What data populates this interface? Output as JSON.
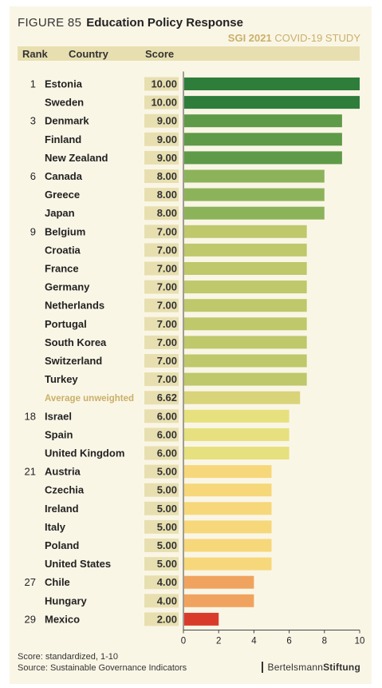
{
  "header": {
    "figure_label": "FIGURE 85",
    "title": "Education Policy Response",
    "subtitle_bold": "SGI 2021",
    "subtitle_rest": "COVID-19 STUDY"
  },
  "columns": {
    "rank": "Rank",
    "country": "Country",
    "score": "Score"
  },
  "chart_data": {
    "type": "bar",
    "orientation": "horizontal",
    "title": "Education Policy Response",
    "categories": [
      "Estonia",
      "Sweden",
      "Denmark",
      "Finland",
      "New Zealand",
      "Canada",
      "Greece",
      "Japan",
      "Belgium",
      "Croatia",
      "France",
      "Germany",
      "Netherlands",
      "Portugal",
      "South Korea",
      "Switzerland",
      "Turkey",
      "Average unweighted",
      "Israel",
      "Spain",
      "United Kingdom",
      "Austria",
      "Czechia",
      "Ireland",
      "Italy",
      "Poland",
      "United States",
      "Chile",
      "Hungary",
      "Mexico"
    ],
    "ranks": [
      "1",
      "",
      "3",
      "",
      "",
      "6",
      "",
      "",
      "9",
      "",
      "",
      "",
      "",
      "",
      "",
      "",
      "",
      "",
      "18",
      "",
      "",
      "21",
      "",
      "",
      "",
      "",
      "",
      "27",
      "",
      "29"
    ],
    "values": [
      10.0,
      10.0,
      9.0,
      9.0,
      9.0,
      8.0,
      8.0,
      8.0,
      7.0,
      7.0,
      7.0,
      7.0,
      7.0,
      7.0,
      7.0,
      7.0,
      7.0,
      6.62,
      6.0,
      6.0,
      6.0,
      5.0,
      5.0,
      5.0,
      5.0,
      5.0,
      5.0,
      4.0,
      4.0,
      2.0
    ],
    "value_labels": [
      "10.00",
      "10.00",
      "9.00",
      "9.00",
      "9.00",
      "8.00",
      "8.00",
      "8.00",
      "7.00",
      "7.00",
      "7.00",
      "7.00",
      "7.00",
      "7.00",
      "7.00",
      "7.00",
      "7.00",
      "6.62",
      "6.00",
      "6.00",
      "6.00",
      "5.00",
      "5.00",
      "5.00",
      "5.00",
      "5.00",
      "5.00",
      "4.00",
      "4.00",
      "2.00"
    ],
    "highlight_category": "Average unweighted",
    "xlim": [
      0,
      10
    ],
    "xticks": [
      0,
      2,
      4,
      6,
      8,
      10
    ],
    "colors": {
      "10": "#2e7d3a",
      "9": "#5e9a48",
      "8": "#8db35a",
      "7": "#bfc86a",
      "avg": "#d9d37a",
      "6": "#e6e07e",
      "5": "#f6d77a",
      "4": "#f0a35e",
      "2": "#d93b2b"
    }
  },
  "footer": {
    "score_note": "Score:   standardized, 1-10",
    "source_note": "Source:  Sustainable Governance Indicators",
    "logo_regular": "Bertelsmann",
    "logo_bold": "Stiftung"
  }
}
